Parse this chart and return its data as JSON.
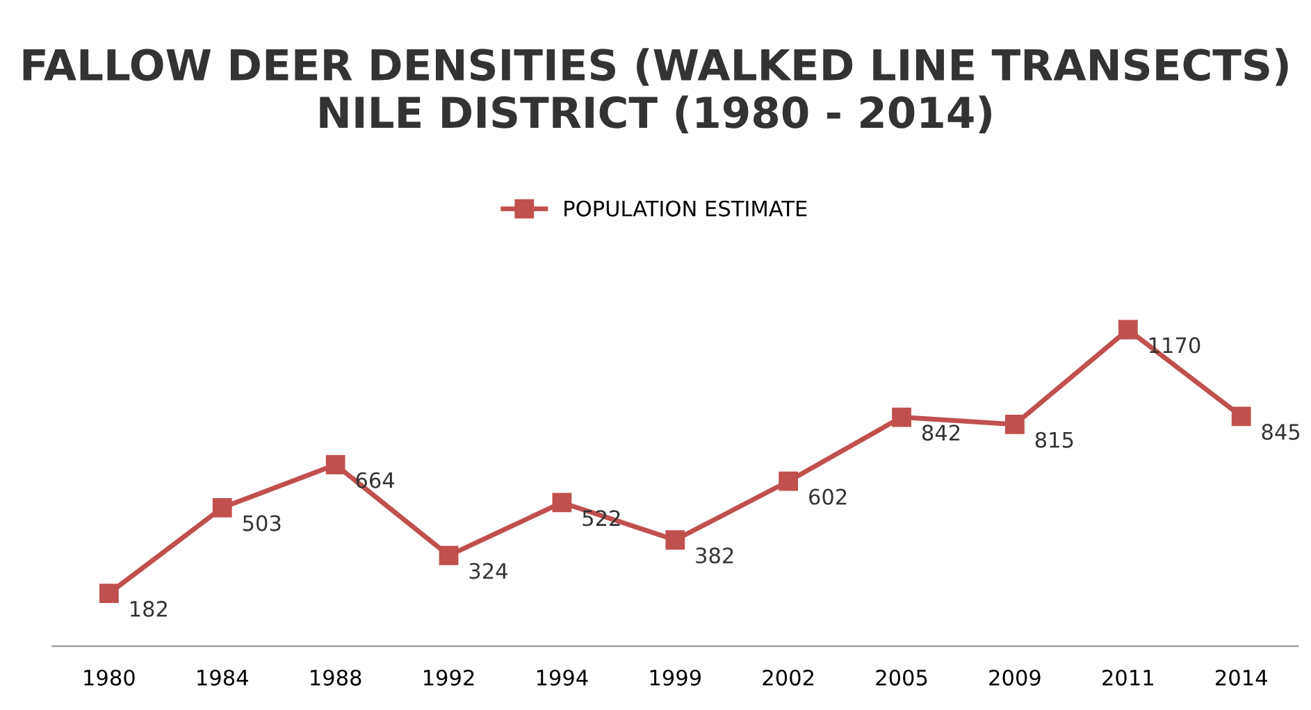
{
  "chart_data": {
    "type": "line",
    "title": "FALLOW DEER DENSITIES (WALKED LINE TRANSECTS) NILE DISTRICT (1980 - 2014)",
    "categories": [
      "1980",
      "1984",
      "1988",
      "1992",
      "1994",
      "1999",
      "2002",
      "2005",
      "2009",
      "2011",
      "2014"
    ],
    "series": [
      {
        "name": "POPULATION ESTIMATE",
        "color": "#c0504d",
        "values": [
          182,
          503,
          664,
          324,
          522,
          382,
          602,
          842,
          815,
          1170,
          845
        ]
      }
    ],
    "tick_labels": "x",
    "marker": "square",
    "line_style": "solid",
    "data_labels": true,
    "legend": "top",
    "grid": false
  }
}
